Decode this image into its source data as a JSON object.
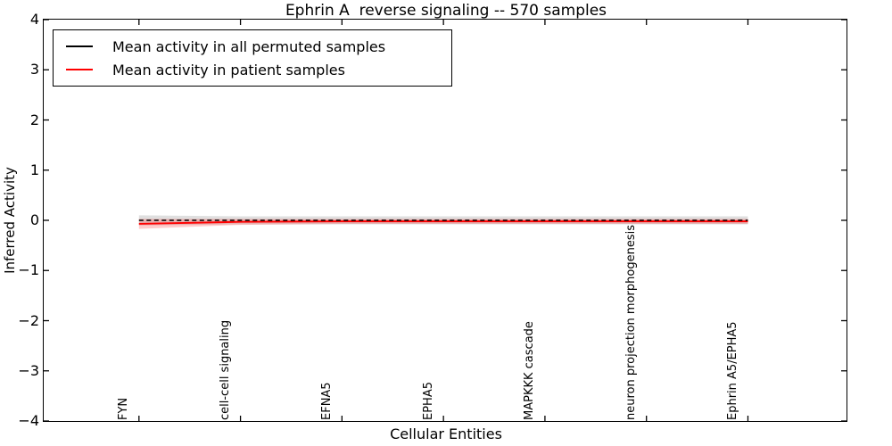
{
  "title": "Ephrin A  reverse signaling -- 570 samples",
  "axes": {
    "xlabel": "Cellular Entities",
    "ylabel": "Inferred Activity"
  },
  "legend": {
    "position": "upper left",
    "entries": [
      {
        "label": "Mean activity in all permuted samples",
        "color": "#000000"
      },
      {
        "label": "Mean activity in patient samples",
        "color": "#ff0000"
      }
    ]
  },
  "chart_data": {
    "type": "line",
    "title": "Ephrin A  reverse signaling -- 570 samples",
    "xlabel": "Cellular Entities",
    "ylabel": "Inferred Activity",
    "categories": [
      "FYN",
      "cell-cell signaling",
      "EFNA5",
      "EPHA5",
      "MAPKKK cascade",
      "neuron projection morphogenesis",
      "Ephrin A5/EPHA5"
    ],
    "ylim": [
      -4,
      4
    ],
    "ytick_labels": [
      "4",
      "3",
      "2",
      "1",
      "0",
      "−1",
      "−2",
      "−3",
      "−4"
    ],
    "grid": false,
    "legend_position": "upper left",
    "series": [
      {
        "name": "Mean activity in all permuted samples",
        "color": "#000000",
        "line_style": "dashed",
        "values": [
          0,
          0,
          0,
          0,
          0,
          0,
          0
        ],
        "band": {
          "upper": [
            0.1,
            0.08,
            0.08,
            0.08,
            0.08,
            0.08,
            0.08
          ],
          "lower": [
            -0.1,
            -0.08,
            -0.08,
            -0.08,
            -0.08,
            -0.08,
            -0.08
          ],
          "color": "rgba(110,110,110,0.22)"
        }
      },
      {
        "name": "Mean activity in patient samples",
        "color": "#ff0000",
        "line_style": "solid",
        "values": [
          -0.07,
          -0.03,
          -0.02,
          -0.02,
          -0.02,
          -0.02,
          -0.02
        ],
        "band": {
          "upper": [
            0.03,
            0.03,
            0.03,
            0.03,
            0.03,
            0.03,
            0.03
          ],
          "lower": [
            -0.17,
            -0.09,
            -0.07,
            -0.07,
            -0.07,
            -0.07,
            -0.07
          ],
          "color": "rgba(255,0,0,0.2)"
        }
      }
    ]
  }
}
